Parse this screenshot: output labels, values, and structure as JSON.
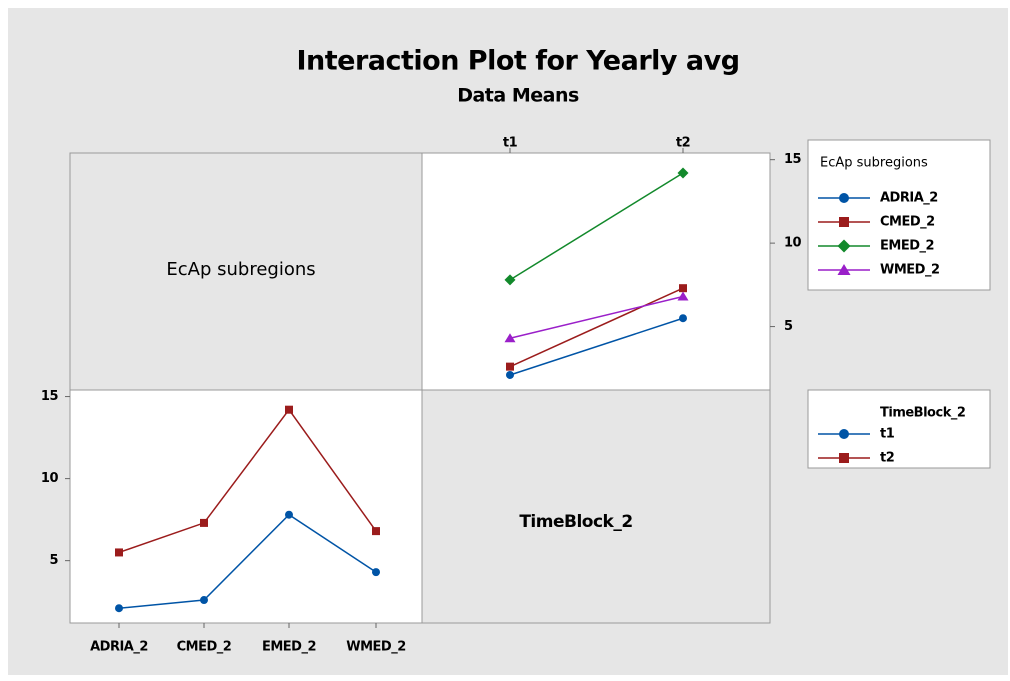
{
  "chart_data": [
    {
      "type": "line",
      "title": "Interaction Plot for Yearly avg",
      "subtitle": "Data Means",
      "panel_label": "EcAp subregions",
      "legend_title": "EcAp subregions",
      "categories": [
        "t1",
        "t2"
      ],
      "series": [
        {
          "name": "ADRIA_2",
          "color": "#0054a6",
          "marker": "circle",
          "values": [
            2.1,
            5.5
          ]
        },
        {
          "name": "CMED_2",
          "color": "#9b1c1c",
          "marker": "square",
          "values": [
            2.6,
            7.3
          ]
        },
        {
          "name": "EMED_2",
          "color": "#12892b",
          "marker": "diamond",
          "values": [
            7.8,
            14.2
          ]
        },
        {
          "name": "WMED_2",
          "color": "#9a1fc9",
          "marker": "triangle",
          "values": [
            4.3,
            6.8
          ]
        }
      ],
      "ylim": [
        1.2,
        15.4
      ],
      "yticks": [
        5,
        10,
        15
      ]
    },
    {
      "type": "line",
      "panel_label": "TimeBlock_2",
      "legend_title": "TimeBlock_2",
      "categories": [
        "ADRIA_2",
        "CMED_2",
        "EMED_2",
        "WMED_2"
      ],
      "series": [
        {
          "name": "t1",
          "color": "#0054a6",
          "marker": "circle",
          "values": [
            2.1,
            2.6,
            7.8,
            4.3
          ]
        },
        {
          "name": "t2",
          "color": "#9b1c1c",
          "marker": "square",
          "values": [
            5.5,
            7.3,
            14.2,
            6.8
          ]
        }
      ],
      "ylim": [
        1.2,
        15.4
      ],
      "yticks": [
        5,
        10,
        15
      ]
    }
  ]
}
